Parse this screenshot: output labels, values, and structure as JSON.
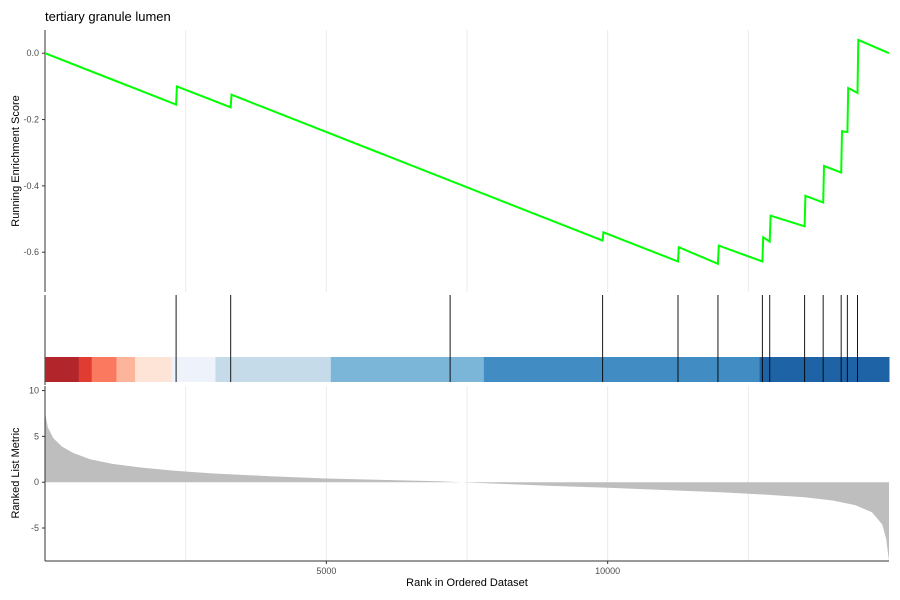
{
  "chart_data": {
    "type": "line",
    "title": "tertiary granule lumen",
    "x_label": "Rank in Ordered Dataset",
    "x_range": [
      0,
      15000
    ],
    "x_ticks": [
      5000,
      10000
    ],
    "x_tick_labels": [
      "5000",
      "10000"
    ],
    "grid": true,
    "enrichment_panel": {
      "ylabel": "Running Enrichment Score",
      "ylim": [
        -0.72,
        0.07
      ],
      "yticks": [
        0.0,
        -0.2,
        -0.4,
        -0.6
      ],
      "ytick_labels": [
        "0.0",
        "-0.2",
        "-0.4",
        "-0.6"
      ],
      "line_color": "#00ff00",
      "points": [
        [
          0,
          0.0
        ],
        [
          2330,
          -0.155
        ],
        [
          2345,
          -0.1
        ],
        [
          3300,
          -0.163
        ],
        [
          3315,
          -0.125
        ],
        [
          9910,
          -0.565
        ],
        [
          9925,
          -0.54
        ],
        [
          11250,
          -0.628
        ],
        [
          11265,
          -0.585
        ],
        [
          11960,
          -0.635
        ],
        [
          11975,
          -0.58
        ],
        [
          12750,
          -0.628
        ],
        [
          12765,
          -0.555
        ],
        [
          12880,
          -0.568
        ],
        [
          12895,
          -0.49
        ],
        [
          13500,
          -0.522
        ],
        [
          13515,
          -0.43
        ],
        [
          13830,
          -0.45
        ],
        [
          13845,
          -0.34
        ],
        [
          14150,
          -0.36
        ],
        [
          14165,
          -0.235
        ],
        [
          14260,
          -0.238
        ],
        [
          14275,
          -0.105
        ],
        [
          14440,
          -0.12
        ],
        [
          14455,
          0.04
        ],
        [
          15000,
          0.0
        ]
      ]
    },
    "hit_positions": [
      2330,
      3300,
      7200,
      9910,
      11250,
      11960,
      12750,
      12880,
      13500,
      13830,
      14150,
      14260,
      14440
    ],
    "hit_color": "#000000",
    "color_bar": {
      "segments": [
        {
          "start": 0,
          "end": 600,
          "color": "#b2262b"
        },
        {
          "start": 600,
          "end": 830,
          "color": "#e03c32"
        },
        {
          "start": 830,
          "end": 1270,
          "color": "#fb7a5f"
        },
        {
          "start": 1270,
          "end": 1600,
          "color": "#fcb59a"
        },
        {
          "start": 1600,
          "end": 2250,
          "color": "#fee3d7"
        },
        {
          "start": 2250,
          "end": 3030,
          "color": "#eef3fb"
        },
        {
          "start": 3030,
          "end": 5080,
          "color": "#c5dbea"
        },
        {
          "start": 5080,
          "end": 7800,
          "color": "#7bb5d8"
        },
        {
          "start": 7800,
          "end": 12700,
          "color": "#418cc2"
        },
        {
          "start": 12700,
          "end": 15000,
          "color": "#1e63a6"
        }
      ]
    },
    "ranked_panel": {
      "ylabel": "Ranked List Metric",
      "ylim": [
        -8.6,
        10.5
      ],
      "yticks": [
        10,
        5,
        0,
        -5
      ],
      "ytick_labels": [
        "10",
        "5",
        "0",
        "-5"
      ],
      "fill_color": "#bebebe",
      "profile": [
        [
          0,
          7.6
        ],
        [
          50,
          6.0
        ],
        [
          150,
          4.8
        ],
        [
          300,
          3.9
        ],
        [
          500,
          3.2
        ],
        [
          800,
          2.5
        ],
        [
          1200,
          2.0
        ],
        [
          1700,
          1.6
        ],
        [
          2300,
          1.25
        ],
        [
          3000,
          0.95
        ],
        [
          4000,
          0.65
        ],
        [
          5000,
          0.4
        ],
        [
          6000,
          0.25
        ],
        [
          7000,
          0.1
        ],
        [
          7400,
          0.0
        ],
        [
          8000,
          -0.15
        ],
        [
          9000,
          -0.4
        ],
        [
          10000,
          -0.6
        ],
        [
          11000,
          -0.85
        ],
        [
          12000,
          -1.1
        ],
        [
          12800,
          -1.35
        ],
        [
          13500,
          -1.65
        ],
        [
          14000,
          -2.0
        ],
        [
          14400,
          -2.5
        ],
        [
          14700,
          -3.3
        ],
        [
          14880,
          -4.6
        ],
        [
          14950,
          -6.2
        ],
        [
          15000,
          -8.6
        ]
      ]
    }
  }
}
